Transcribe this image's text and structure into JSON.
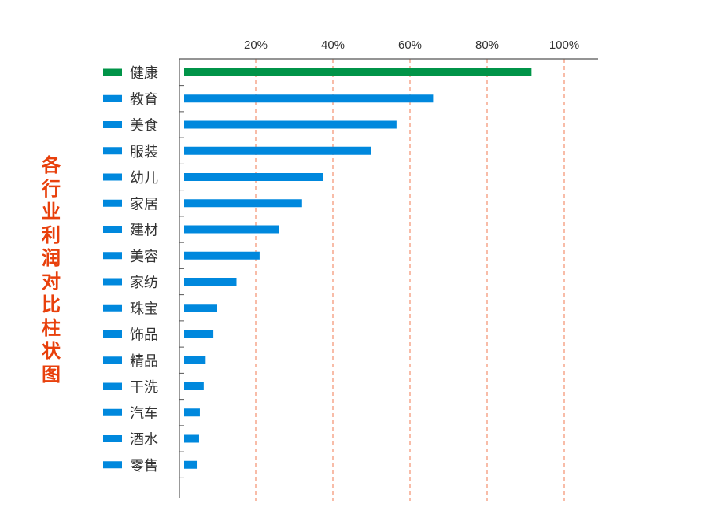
{
  "chart_data": {
    "type": "bar",
    "orientation": "horizontal",
    "title": "各行业利润对比柱状图",
    "categories": [
      "健康",
      "教育",
      "美食",
      "服装",
      "幼儿",
      "家居",
      "建材",
      "美容",
      "家纺",
      "珠宝",
      "饰品",
      "精品",
      "干洗",
      "汽车",
      "酒水",
      "零售"
    ],
    "values": [
      91.5,
      66,
      56.5,
      50,
      37.5,
      32,
      26,
      21,
      15,
      10,
      9,
      7,
      6.5,
      5.5,
      5.3,
      4.7
    ],
    "highlight": {
      "category": "健康",
      "color": "#009448"
    },
    "bar_color": "#0088dd",
    "xlim": [
      0,
      108
    ],
    "xticks": [
      20,
      40,
      60,
      80,
      100
    ],
    "xtick_labels": [
      "20%",
      "40%",
      "60%",
      "80%",
      "100%"
    ],
    "x_axis_position": "top",
    "grid": {
      "on": true,
      "style": "dashed",
      "color": "#f07a52"
    },
    "legend": "left"
  }
}
